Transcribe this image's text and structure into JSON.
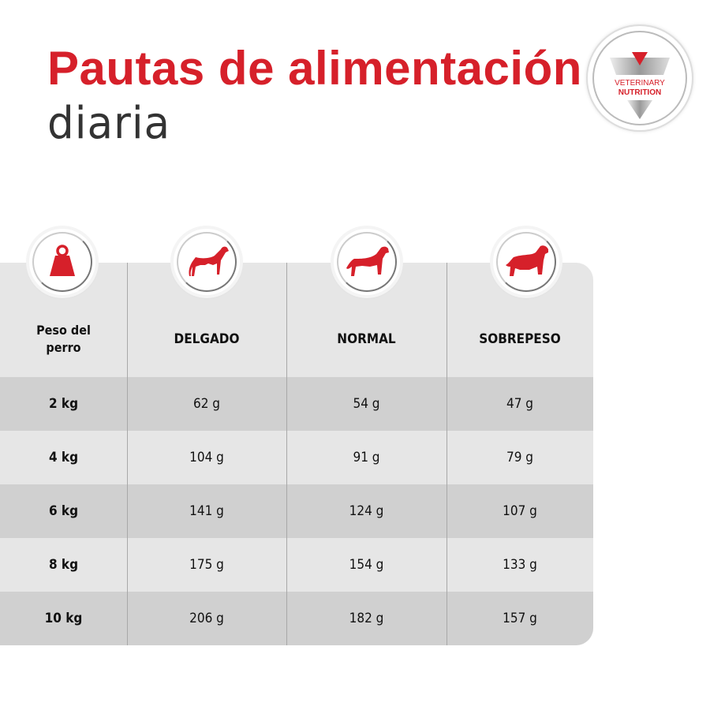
{
  "header": {
    "title": "Pautas de alimentación",
    "subtitle": "diaria"
  },
  "logo": {
    "line1": "VETERINARY",
    "line2": "NUTRITION"
  },
  "colors": {
    "accent": "#d6202a",
    "row_dark": "#d0d0d0",
    "row_light": "#e6e6e6"
  },
  "table": {
    "columns": [
      {
        "label": "Peso del perro",
        "icon": "weight-icon"
      },
      {
        "label": "DELGADO",
        "icon": "thin-dog-icon"
      },
      {
        "label": "NORMAL",
        "icon": "normal-dog-icon"
      },
      {
        "label": "SOBREPESO",
        "icon": "overweight-dog-icon"
      }
    ],
    "rows": [
      [
        "2 kg",
        "62 g",
        "54 g",
        "47 g"
      ],
      [
        "4 kg",
        "104 g",
        "91 g",
        "79 g"
      ],
      [
        "6 kg",
        "141 g",
        "124 g",
        "107 g"
      ],
      [
        "8 kg",
        "175 g",
        "154 g",
        "133 g"
      ],
      [
        "10 kg",
        "206 g",
        "182 g",
        "157 g"
      ]
    ]
  }
}
